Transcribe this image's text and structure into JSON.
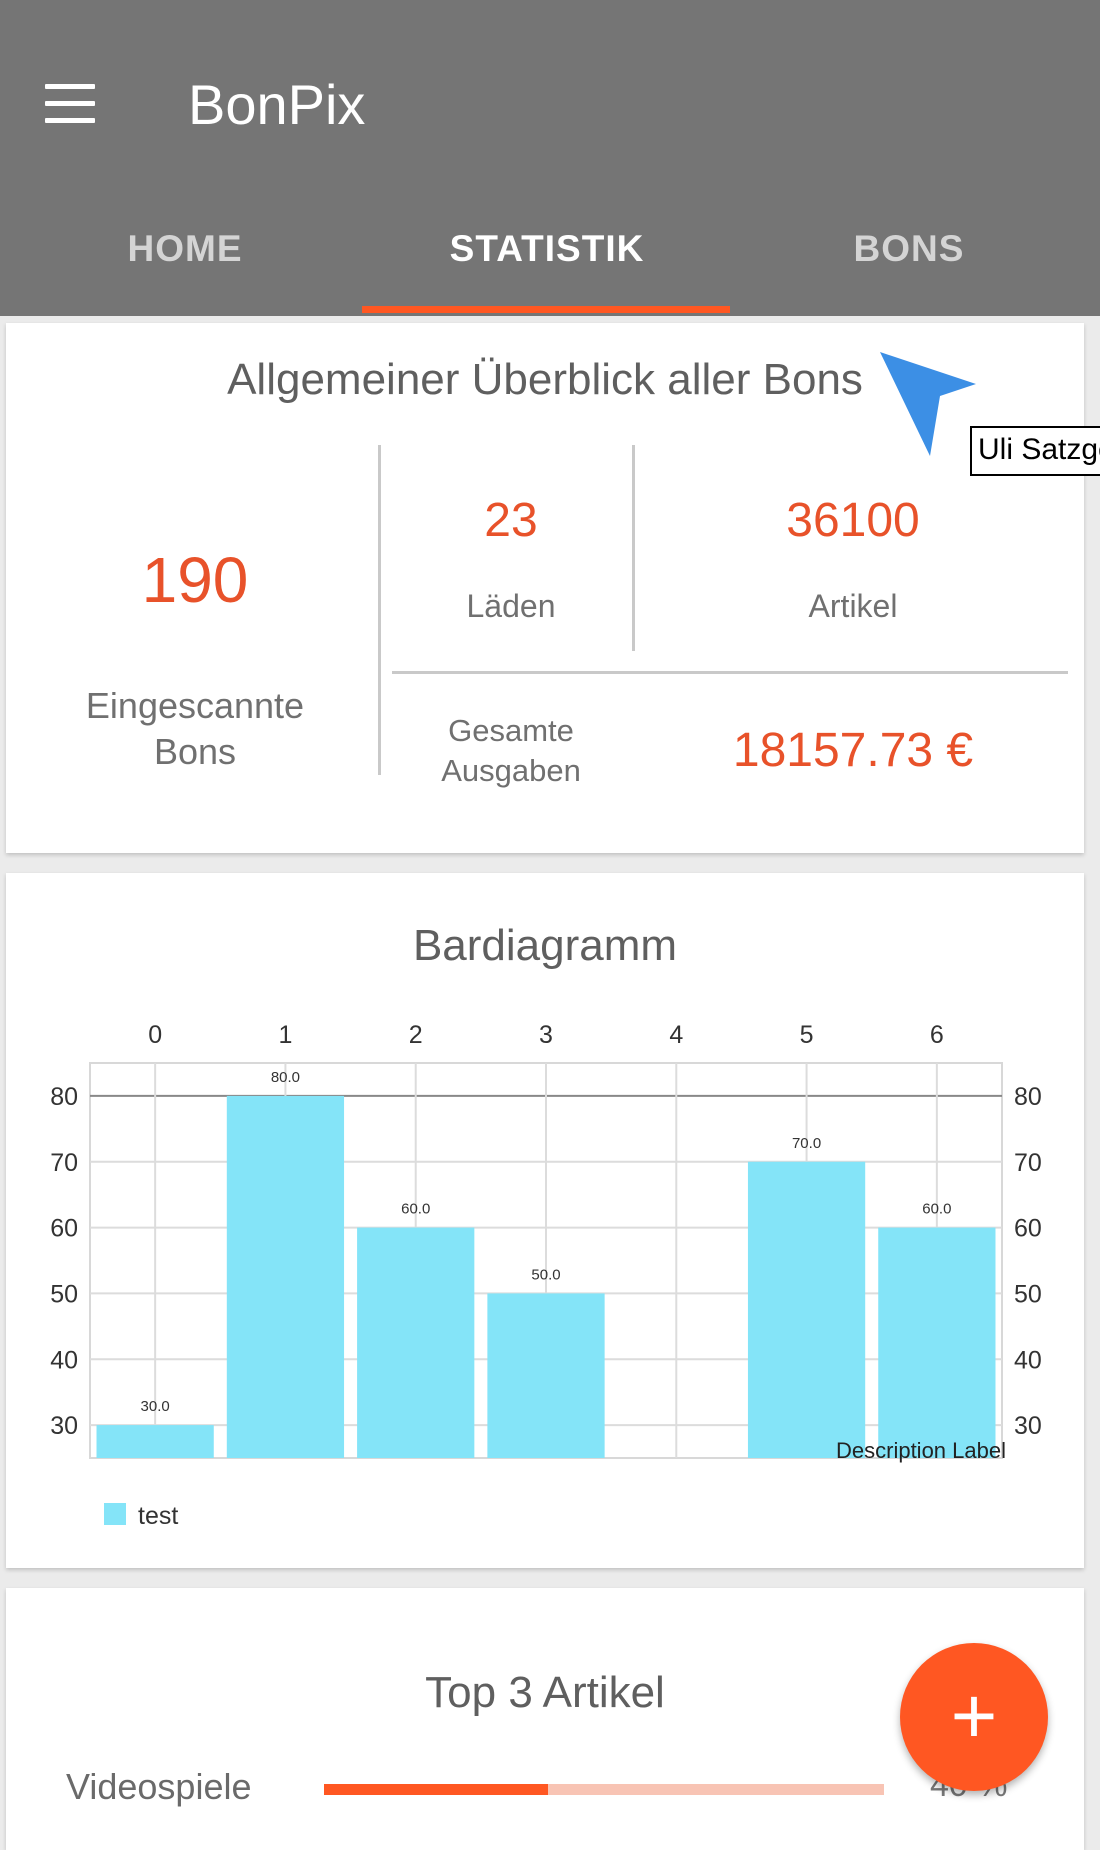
{
  "app": {
    "title": "BonPix",
    "tabs": [
      {
        "label": "HOME",
        "active": false
      },
      {
        "label": "STATISTIK",
        "active": true
      },
      {
        "label": "BONS",
        "active": false
      }
    ]
  },
  "overview": {
    "title": "Allgemeiner Überblick aller Bons",
    "scanned_value": "190",
    "scanned_label": "Eingescannte Bons",
    "shops_value": "23",
    "shops_label": "Läden",
    "articles_value": "36100",
    "articles_label": "Artikel",
    "spend_label": "Gesamte Ausgaben",
    "spend_value": "18157.73 €"
  },
  "bar_card": {
    "title": "Bardiagramm",
    "description": "Description Label"
  },
  "chart_data": {
    "type": "bar",
    "categories": [
      "0",
      "1",
      "2",
      "3",
      "4",
      "5",
      "6"
    ],
    "series": [
      {
        "name": "test",
        "values": [
          30.0,
          80.0,
          60.0,
          50.0,
          null,
          70.0,
          60.0
        ],
        "value_labels": [
          "30.0",
          "80.0",
          "60.0",
          "50.0",
          "",
          "70.0",
          "60.0"
        ],
        "color": "#84e4f8"
      }
    ],
    "ylim": [
      25,
      85
    ],
    "yticks": [
      30,
      40,
      50,
      60,
      70,
      80
    ],
    "xaxis_position": "top",
    "yaxis": "both",
    "grid": true,
    "legend": "bottom-left"
  },
  "top3": {
    "title": "Top 3 Artikel",
    "items": [
      {
        "name": "Videospiele",
        "percent_text": "40 %",
        "fraction": 0.4
      }
    ]
  },
  "fab": {
    "icon": "plus-icon",
    "label": "+"
  },
  "overlay": {
    "tooltip": "Uli Satzger"
  },
  "colors": {
    "accent": "#ff5722",
    "number": "#e8522a",
    "bar": "#84e4f8",
    "appbar": "#757575"
  }
}
